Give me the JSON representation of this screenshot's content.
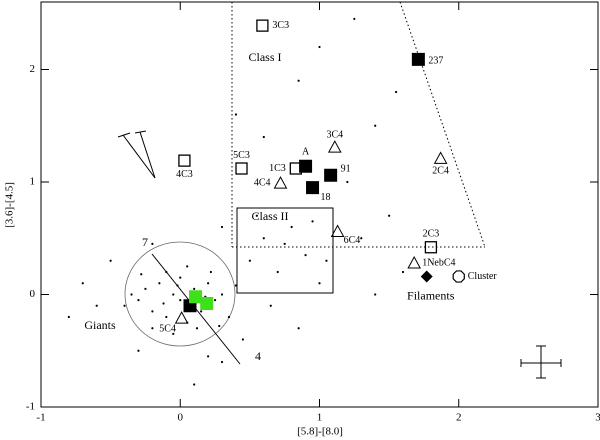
{
  "chart_data": {
    "type": "scatter",
    "xlabel": "[5.8]-[8.0]",
    "ylabel": "[3.6]-[4.5]",
    "xlim": [
      -1,
      3
    ],
    "ylim": [
      -1,
      2.6
    ],
    "xticks": [
      -1,
      0,
      1,
      2,
      3
    ],
    "yticks": [
      -1,
      0,
      1,
      2
    ],
    "annotations": [
      "Class I",
      "Class II",
      "Giants",
      "7",
      "4"
    ],
    "series": [
      {
        "marker": "open-square",
        "color": "#000000",
        "x": [
          0.59,
          0.44,
          0.83,
          0.03,
          1.8
        ],
        "y": [
          2.39,
          1.12,
          1.12,
          1.19,
          0.42
        ],
        "labels": [
          "3C3",
          "5C3",
          "1C3",
          "4C3",
          "2C3"
        ]
      },
      {
        "marker": "filled-square",
        "color": "#000000",
        "x": [
          1.71,
          0.9,
          1.08,
          0.95,
          0.07
        ],
        "y": [
          2.09,
          1.14,
          1.06,
          0.95,
          -0.1
        ],
        "labels": [
          "237",
          "A",
          "91",
          "18",
          null
        ]
      },
      {
        "marker": "triangle",
        "color": "#000000",
        "x": [
          1.11,
          0.72,
          1.87,
          1.13,
          1.68,
          0.01
        ],
        "y": [
          1.31,
          0.99,
          1.21,
          0.56,
          0.28,
          -0.21
        ],
        "labels": [
          "3C4",
          "4C4",
          "2C4",
          "6C4",
          "1NebC4",
          "5C4"
        ]
      },
      {
        "marker": "filled-square",
        "color": "#3ee01a",
        "x": [
          0.11,
          0.19
        ],
        "y": [
          -0.02,
          -0.08
        ],
        "labels": [
          null,
          null
        ]
      },
      {
        "marker": "diamond",
        "color": "#000000",
        "x": [
          1.77
        ],
        "y": [
          0.16
        ],
        "labels": [
          "Filaments"
        ]
      },
      {
        "marker": "octagon",
        "color": "#000000",
        "x": [
          2.0
        ],
        "y": [
          0.16
        ],
        "labels": [
          "Cluster"
        ]
      },
      {
        "marker": "dot",
        "color": "#000000",
        "x": [
          -0.3,
          -0.25,
          -0.2,
          -0.15,
          -0.1,
          -0.05,
          0.0,
          0.05,
          0.1,
          0.15,
          0.2,
          0.25,
          0.3,
          -0.35,
          -0.1,
          0.05,
          0.12,
          -0.2,
          0.35,
          -0.05,
          0.4,
          -0.4,
          0.22,
          -0.28,
          0.0,
          -0.12,
          0.08,
          0.18,
          -0.02,
          0.28,
          0.5,
          0.6,
          0.7,
          0.8,
          0.9,
          1.0,
          0.55,
          0.75,
          0.95,
          1.05,
          0.65,
          0.45,
          0.3,
          -0.6,
          -0.7,
          -0.5,
          0.1,
          0.2,
          -0.3,
          1.3,
          1.5,
          1.2,
          1.4,
          0.85,
          1.0,
          1.25,
          1.55,
          0.6,
          0.3,
          0.4,
          -0.2,
          1.6,
          -0.8,
          0.85,
          1.4
        ],
        "y": [
          -0.05,
          0.05,
          -0.15,
          0.1,
          -0.2,
          0.0,
          0.15,
          -0.25,
          0.05,
          -0.15,
          0.1,
          -0.05,
          0.0,
          0.0,
          0.2,
          0.25,
          -0.3,
          -0.3,
          -0.2,
          -0.35,
          0.08,
          -0.1,
          0.2,
          0.18,
          -0.05,
          -0.08,
          -0.12,
          -0.02,
          0.08,
          -0.28,
          0.3,
          0.5,
          0.2,
          0.6,
          0.35,
          0.1,
          0.7,
          0.45,
          0.65,
          0.3,
          -0.1,
          -0.4,
          -0.6,
          -0.1,
          0.1,
          0.3,
          -0.8,
          -0.55,
          -0.5,
          0.5,
          0.7,
          1.0,
          1.5,
          1.9,
          2.2,
          2.45,
          1.8,
          1.4,
          0.6,
          1.6,
          0.45,
          0.2,
          -0.2,
          -0.3,
          0.0
        ],
        "labels": null
      }
    ]
  }
}
